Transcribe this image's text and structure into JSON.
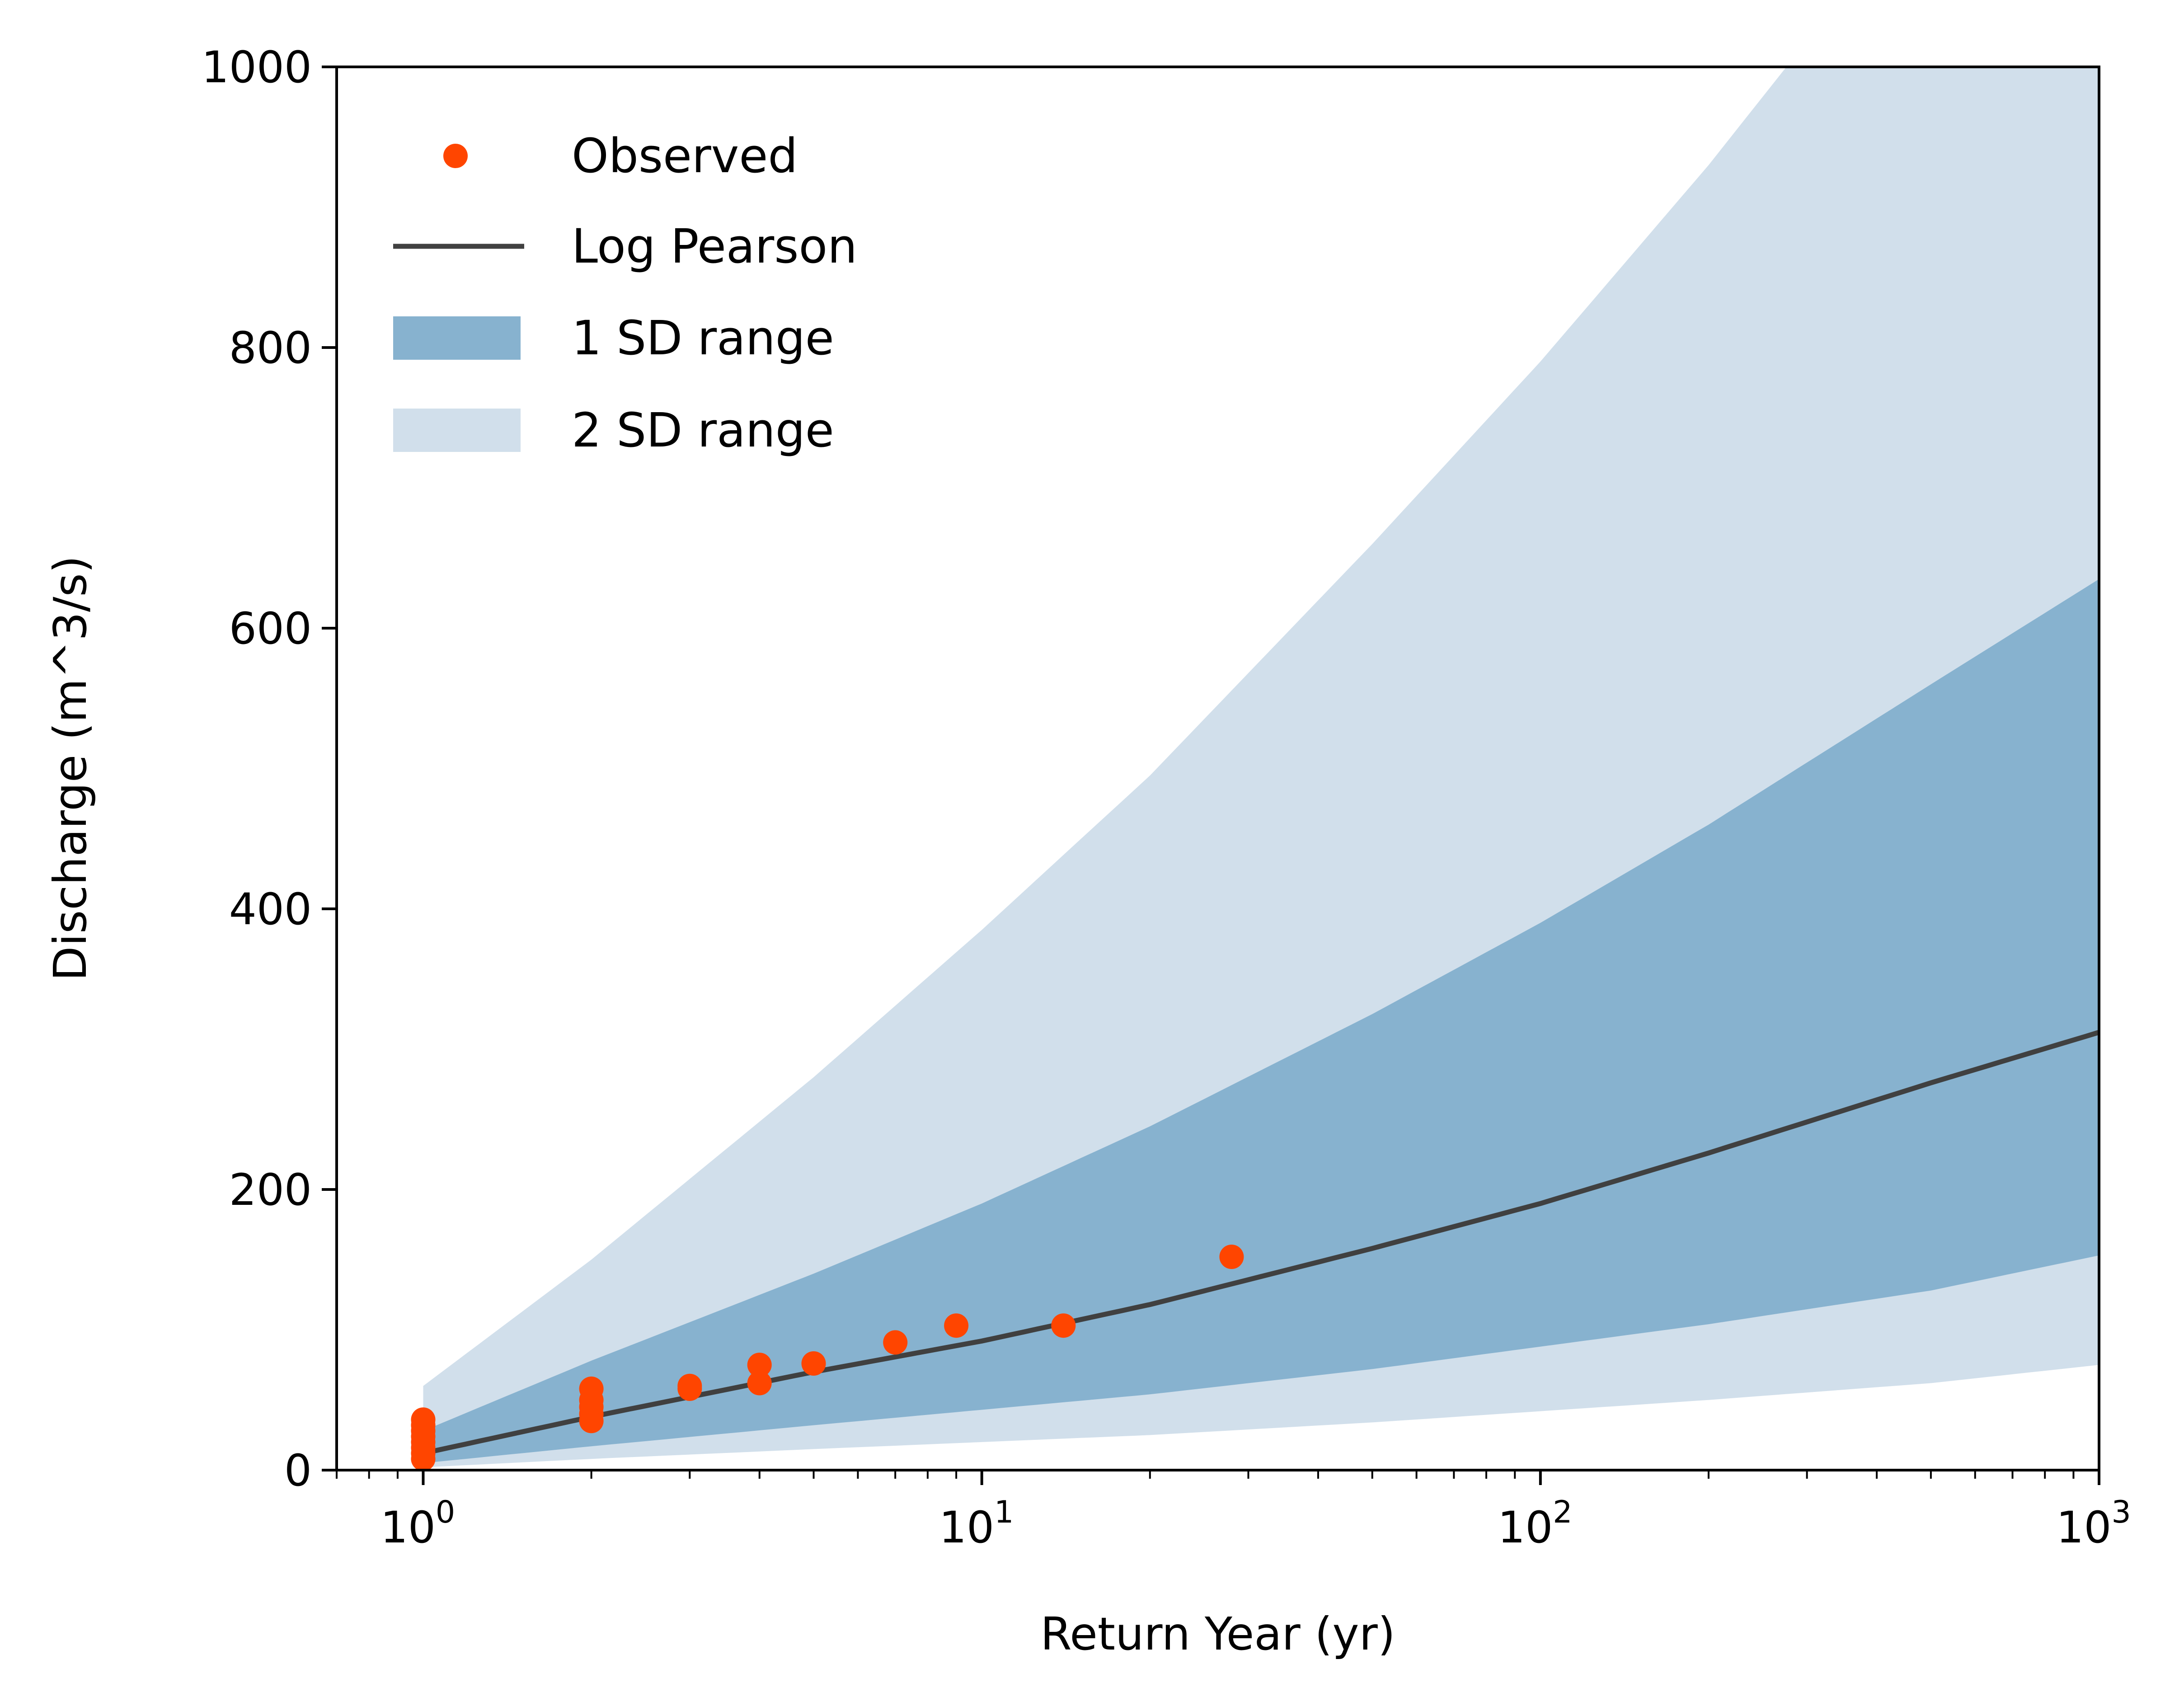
{
  "chart_data": {
    "type": "line",
    "title": "",
    "xlabel": "Return Year (yr)",
    "ylabel": "Discharge (m^3/s)",
    "x_scale": "log",
    "xlim": [
      0.7,
      1000
    ],
    "ylim": [
      0,
      1000
    ],
    "grid": false,
    "legend_position": "top-left",
    "x_ticks": [
      {
        "value": 1,
        "base": "10",
        "exp": "0"
      },
      {
        "value": 10,
        "base": "10",
        "exp": "1"
      },
      {
        "value": 100,
        "base": "10",
        "exp": "2"
      },
      {
        "value": 1000,
        "base": "10",
        "exp": "3"
      }
    ],
    "y_ticks": [
      "0",
      "200",
      "400",
      "600",
      "800",
      "1000"
    ],
    "legend": [
      "Observed",
      "Log Pearson",
      "1 SD range",
      "2 SD range"
    ],
    "colors": {
      "observed": "#ff4500",
      "log_pearson": "#404040",
      "sd1": "#87b2cf",
      "sd2": "#d1dfeb"
    },
    "series": [
      {
        "name": "Observed",
        "kind": "scatter",
        "points": [
          {
            "x": 1,
            "y": 8
          },
          {
            "x": 1,
            "y": 12
          },
          {
            "x": 1,
            "y": 16
          },
          {
            "x": 1,
            "y": 20
          },
          {
            "x": 1,
            "y": 24
          },
          {
            "x": 1,
            "y": 28
          },
          {
            "x": 1,
            "y": 32
          },
          {
            "x": 1,
            "y": 36
          },
          {
            "x": 2,
            "y": 35
          },
          {
            "x": 2,
            "y": 40
          },
          {
            "x": 2,
            "y": 45
          },
          {
            "x": 2,
            "y": 50
          },
          {
            "x": 2,
            "y": 58
          },
          {
            "x": 3,
            "y": 58
          },
          {
            "x": 3,
            "y": 60
          },
          {
            "x": 4,
            "y": 62
          },
          {
            "x": 4,
            "y": 75
          },
          {
            "x": 5,
            "y": 76
          },
          {
            "x": 7,
            "y": 91
          },
          {
            "x": 9,
            "y": 103
          },
          {
            "x": 14,
            "y": 103
          },
          {
            "x": 28,
            "y": 152
          }
        ]
      },
      {
        "name": "Log Pearson",
        "kind": "line",
        "x": [
          1,
          2,
          5,
          10,
          20,
          50,
          100,
          200,
          500,
          1000
        ],
        "y": [
          12,
          38,
          70,
          92,
          118,
          158,
          190,
          226,
          276,
          312
        ]
      },
      {
        "name": "1 SD range",
        "kind": "band",
        "x": [
          1,
          2,
          5,
          10,
          20,
          50,
          100,
          200,
          500,
          1000
        ],
        "lower": [
          5,
          17,
          32,
          43,
          54,
          72,
          88,
          104,
          128,
          153
        ],
        "upper": [
          28,
          78,
          140,
          190,
          245,
          325,
          390,
          460,
          560,
          635
        ]
      },
      {
        "name": "2 SD range",
        "kind": "band",
        "x": [
          1,
          2,
          5,
          10,
          20,
          50,
          100,
          200,
          500,
          1000
        ],
        "lower": [
          2,
          8,
          15,
          20,
          25,
          34,
          42,
          50,
          62,
          75
        ],
        "upper": [
          60,
          150,
          280,
          385,
          495,
          660,
          790,
          930,
          1130,
          1300
        ]
      }
    ]
  }
}
